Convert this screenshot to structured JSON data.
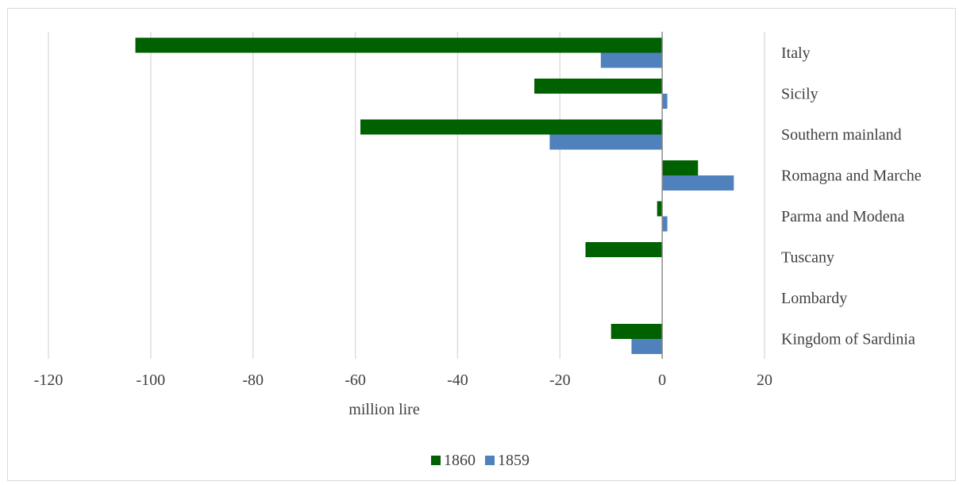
{
  "chart_data": {
    "type": "bar",
    "orientation": "horizontal",
    "categories": [
      "Italy",
      "Sicily",
      "Southern mainland",
      "Romagna and Marche",
      "Parma and Modena",
      "Tuscany",
      "Lombardy",
      "Kingdom of Sardinia"
    ],
    "series": [
      {
        "name": "1860",
        "color": "#006100",
        "values": [
          -103,
          -25,
          -59,
          7,
          -1,
          -15,
          0,
          -10
        ]
      },
      {
        "name": "1859",
        "color": "#4f81bd",
        "values": [
          -12,
          1,
          -22,
          14,
          1,
          0,
          0,
          -6
        ]
      }
    ],
    "title": "",
    "xlabel": "million lire",
    "ylabel": "",
    "xlim": [
      -120,
      20
    ],
    "xticks": [
      -120,
      -100,
      -80,
      -60,
      -40,
      -20,
      0,
      20
    ],
    "grid": true,
    "legend": "bottom"
  }
}
